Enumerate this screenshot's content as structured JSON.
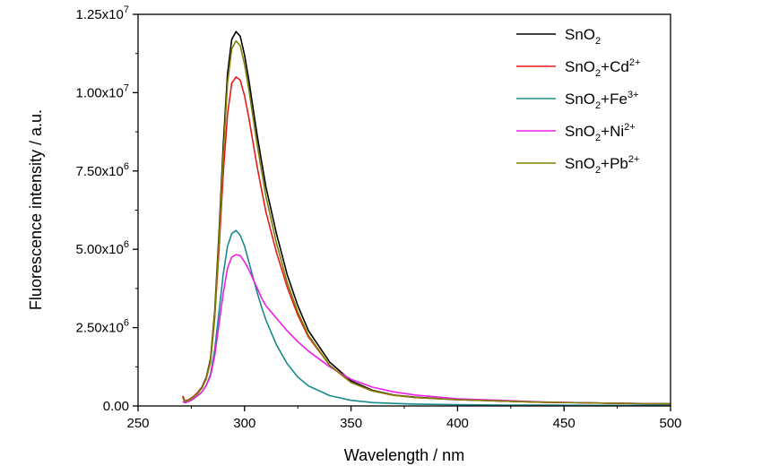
{
  "chart_data": {
    "type": "line",
    "title": "",
    "xlabel": "Wavelength / nm",
    "ylabel": "Fluorescence intensity / a.u.",
    "xlim": [
      250,
      500
    ],
    "ylim": [
      0,
      12500000
    ],
    "x_ticks": [
      {
        "value": 250,
        "label": "250"
      },
      {
        "value": 300,
        "label": "300"
      },
      {
        "value": 350,
        "label": "350"
      },
      {
        "value": 400,
        "label": "400"
      },
      {
        "value": 450,
        "label": "450"
      },
      {
        "value": 500,
        "label": "500"
      }
    ],
    "y_ticks": [
      {
        "value": 0,
        "mantissa": "0.00",
        "exponent": ""
      },
      {
        "value": 2500000,
        "mantissa": "2.50x10",
        "exponent": "6"
      },
      {
        "value": 5000000,
        "mantissa": "5.00x10",
        "exponent": "6"
      },
      {
        "value": 7500000,
        "mantissa": "7.50x10",
        "exponent": "6"
      },
      {
        "value": 10000000,
        "mantissa": "1.00x10",
        "exponent": "7"
      },
      {
        "value": 12500000,
        "mantissa": "1.25x10",
        "exponent": "7"
      }
    ],
    "grid": false,
    "legend_position": "top-right",
    "series": [
      {
        "name": "SnO2",
        "legend_base": "SnO",
        "legend_sub": "2",
        "legend_rest": "",
        "legend_sup": "",
        "color": "#000000",
        "x": [
          271,
          272,
          274,
          276,
          278,
          280,
          282,
          284,
          286,
          288,
          290,
          292,
          294,
          296,
          298,
          300,
          302,
          304,
          306,
          308,
          310,
          315,
          320,
          325,
          330,
          340,
          350,
          360,
          370,
          380,
          400,
          420,
          440,
          460,
          480,
          500
        ],
        "y": [
          300000,
          150000,
          200000,
          300000,
          430000,
          600000,
          900000,
          1500000,
          3000000,
          5500000,
          8300000,
          10600000,
          11700000,
          11950000,
          11800000,
          11200000,
          10400000,
          9500000,
          8600000,
          7800000,
          7000000,
          5500000,
          4200000,
          3200000,
          2400000,
          1400000,
          800000,
          500000,
          350000,
          280000,
          200000,
          160000,
          120000,
          100000,
          80000,
          70000
        ]
      },
      {
        "name": "SnO2+Cd2+",
        "legend_base": "SnO",
        "legend_sub": "2",
        "legend_rest": "+Cd",
        "legend_sup": "2+",
        "color": "#e41a1c",
        "x": [
          271,
          272,
          274,
          276,
          278,
          280,
          282,
          284,
          286,
          288,
          290,
          292,
          294,
          296,
          298,
          300,
          302,
          304,
          306,
          308,
          310,
          315,
          320,
          325,
          330,
          340,
          350,
          360,
          370,
          380,
          400,
          420,
          440,
          460,
          480,
          500
        ],
        "y": [
          320000,
          160000,
          210000,
          300000,
          420000,
          580000,
          860000,
          1400000,
          2800000,
          5000000,
          7400000,
          9300000,
          10300000,
          10500000,
          10400000,
          9900000,
          9200000,
          8400000,
          7600000,
          6900000,
          6200000,
          4900000,
          3800000,
          2900000,
          2200000,
          1300000,
          750000,
          480000,
          340000,
          270000,
          200000,
          160000,
          120000,
          100000,
          80000,
          70000
        ]
      },
      {
        "name": "SnO2+Fe3+",
        "legend_base": "SnO",
        "legend_sub": "2",
        "legend_rest": "+Fe",
        "legend_sup": "3+",
        "color": "#1a8a8a",
        "x": [
          271,
          272,
          274,
          276,
          278,
          280,
          282,
          284,
          286,
          288,
          290,
          292,
          294,
          296,
          298,
          300,
          302,
          304,
          306,
          308,
          310,
          315,
          320,
          325,
          330,
          340,
          350,
          360,
          370,
          380,
          400,
          420,
          440,
          460,
          480,
          500
        ],
        "y": [
          150000,
          100000,
          150000,
          220000,
          330000,
          450000,
          650000,
          1000000,
          1800000,
          3000000,
          4200000,
          5100000,
          5500000,
          5600000,
          5450000,
          5100000,
          4600000,
          4100000,
          3600000,
          3150000,
          2750000,
          1950000,
          1350000,
          920000,
          640000,
          330000,
          180000,
          110000,
          80000,
          60000,
          40000,
          30000,
          25000,
          20000,
          20000,
          20000
        ]
      },
      {
        "name": "SnO2+Ni2+",
        "legend_base": "SnO",
        "legend_sub": "2",
        "legend_rest": "+Ni",
        "legend_sup": "2+",
        "color": "#ee1ee8",
        "x": [
          271,
          272,
          274,
          276,
          278,
          280,
          282,
          284,
          286,
          288,
          290,
          292,
          294,
          296,
          298,
          300,
          302,
          304,
          306,
          308,
          310,
          315,
          320,
          325,
          330,
          340,
          350,
          360,
          370,
          380,
          400,
          420,
          440,
          460,
          480,
          500
        ],
        "y": [
          150000,
          100000,
          150000,
          230000,
          330000,
          450000,
          650000,
          950000,
          1600000,
          2600000,
          3600000,
          4400000,
          4750000,
          4830000,
          4800000,
          4600000,
          4350000,
          4050000,
          3750000,
          3450000,
          3200000,
          2800000,
          2400000,
          2050000,
          1750000,
          1250000,
          850000,
          600000,
          450000,
          350000,
          230000,
          180000,
          130000,
          100000,
          80000,
          70000
        ]
      },
      {
        "name": "SnO2+Pb2+",
        "legend_base": "SnO",
        "legend_sub": "2",
        "legend_rest": "+Pb",
        "legend_sup": "2+",
        "color": "#808000",
        "x": [
          271,
          272,
          274,
          276,
          278,
          280,
          282,
          284,
          286,
          288,
          290,
          292,
          294,
          296,
          298,
          300,
          302,
          304,
          306,
          308,
          310,
          315,
          320,
          325,
          330,
          340,
          350,
          360,
          370,
          380,
          400,
          420,
          440,
          460,
          480,
          500
        ],
        "y": [
          250000,
          150000,
          190000,
          280000,
          400000,
          570000,
          870000,
          1450000,
          2900000,
          5300000,
          8000000,
          10300000,
          11400000,
          11650000,
          11500000,
          10900000,
          10100000,
          9200000,
          8300000,
          7500000,
          6700000,
          5200000,
          3950000,
          3000000,
          2250000,
          1300000,
          750000,
          480000,
          340000,
          270000,
          200000,
          160000,
          120000,
          100000,
          80000,
          70000
        ]
      }
    ]
  }
}
